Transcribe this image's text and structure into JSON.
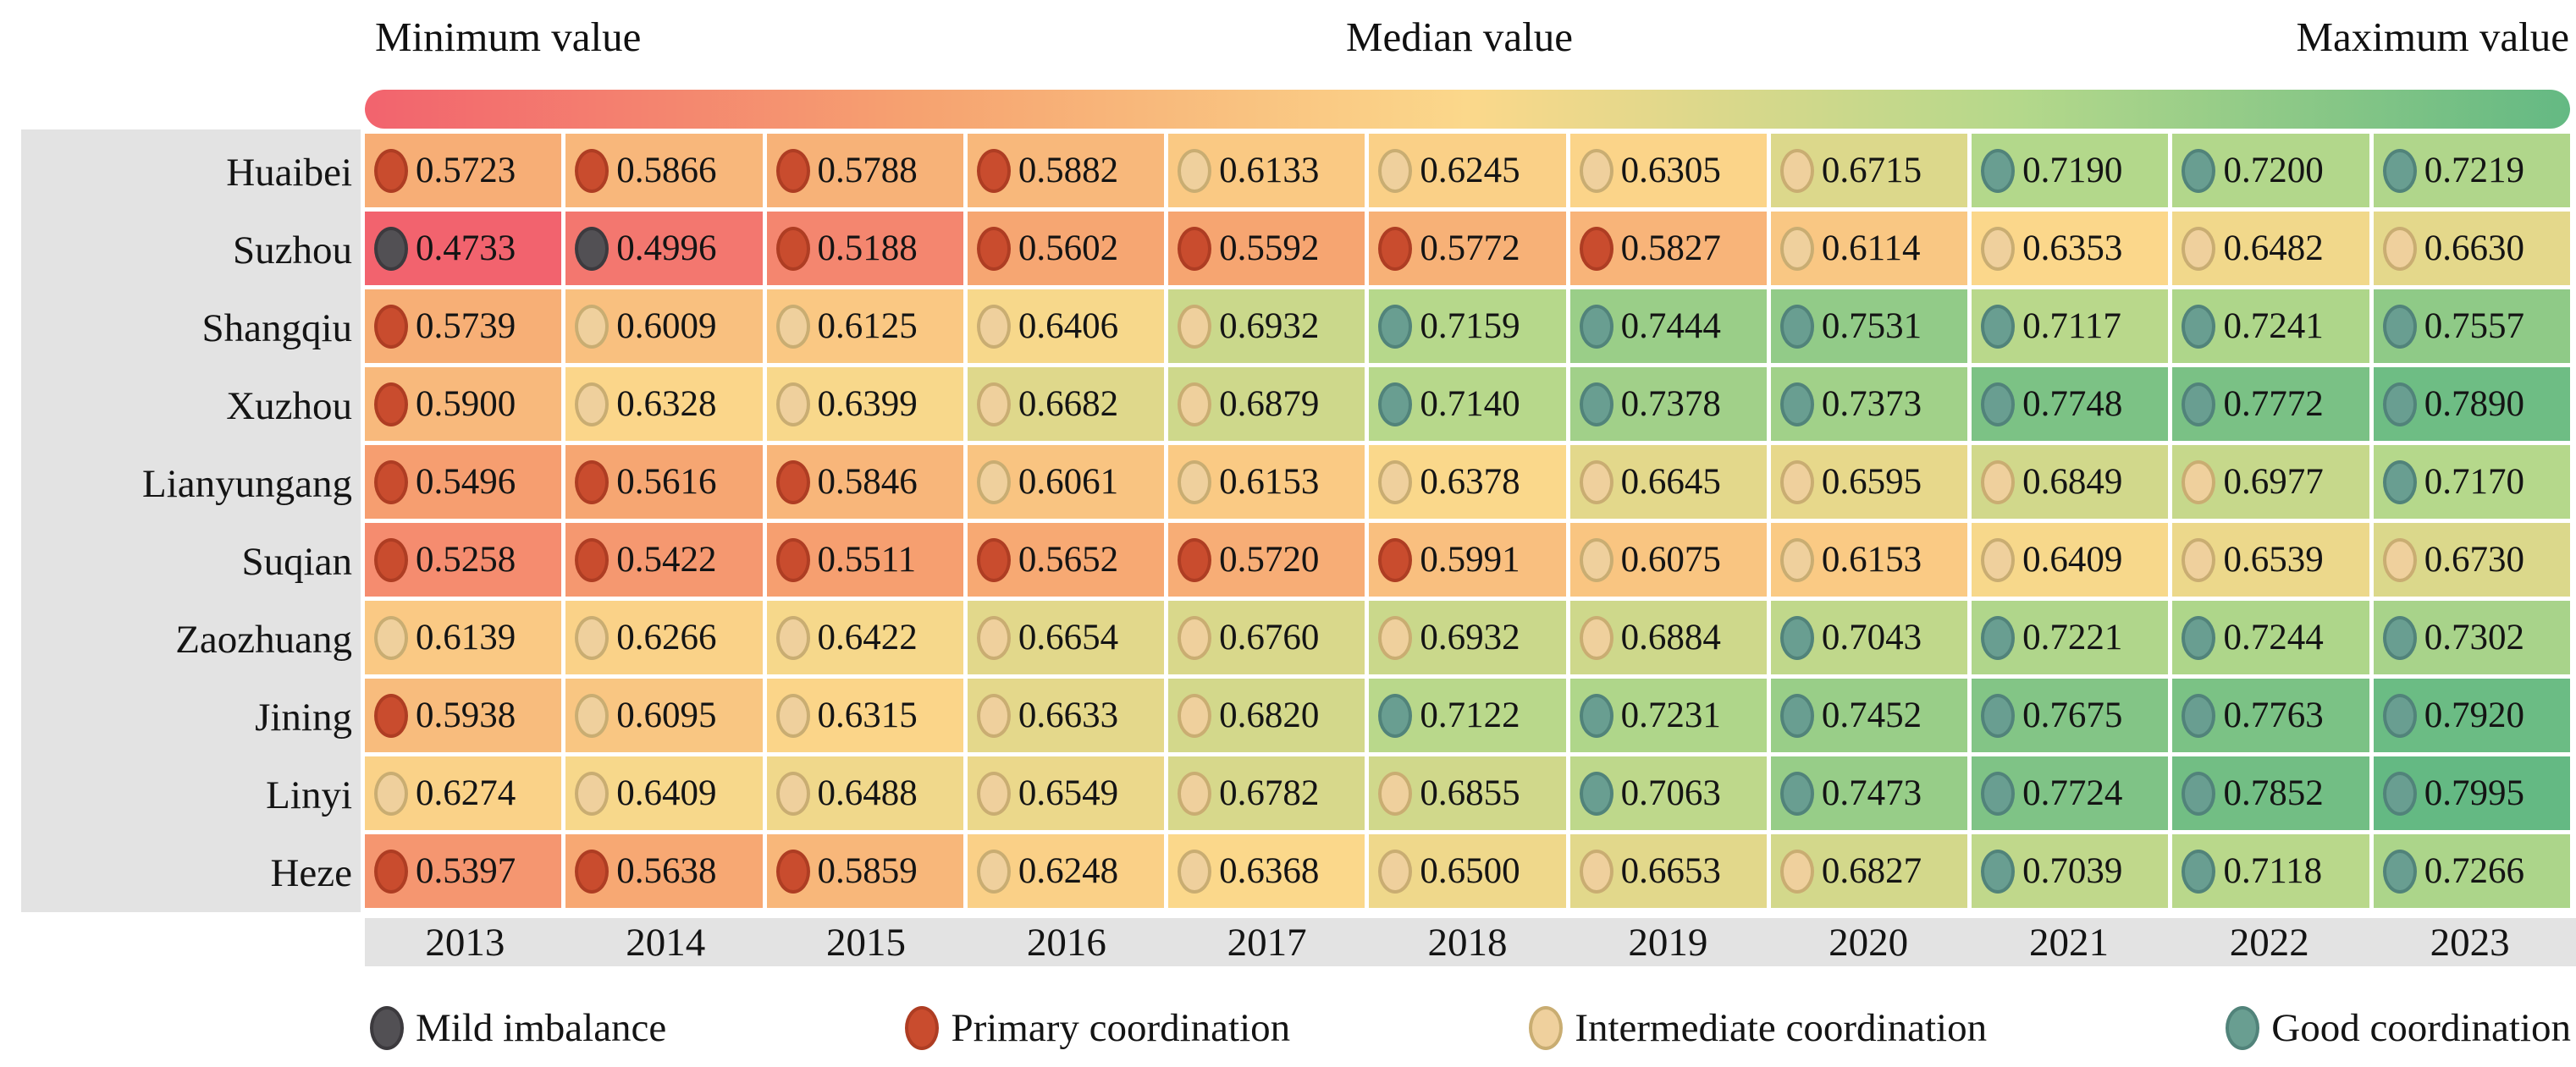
{
  "header": {
    "min_label": "Minimum value",
    "median_label": "Median value",
    "max_label": "Maximum value"
  },
  "chart_data": {
    "type": "heatmap",
    "rows": [
      "Huaibei",
      "Suzhou",
      "Shangqiu",
      "Xuzhou",
      "Lianyungang",
      "Suqian",
      "Zaozhuang",
      "Jining",
      "Linyi",
      "Heze"
    ],
    "columns": [
      "2013",
      "2014",
      "2015",
      "2016",
      "2017",
      "2018",
      "2019",
      "2020",
      "2021",
      "2022",
      "2023"
    ],
    "values": [
      [
        "0.5723",
        "0.5866",
        "0.5788",
        "0.5882",
        "0.6133",
        "0.6245",
        "0.6305",
        "0.6715",
        "0.7190",
        "0.7200",
        "0.7219"
      ],
      [
        "0.4733",
        "0.4996",
        "0.5188",
        "0.5602",
        "0.5592",
        "0.5772",
        "0.5827",
        "0.6114",
        "0.6353",
        "0.6482",
        "0.6630"
      ],
      [
        "0.5739",
        "0.6009",
        "0.6125",
        "0.6406",
        "0.6932",
        "0.7159",
        "0.7444",
        "0.7531",
        "0.7117",
        "0.7241",
        "0.7557"
      ],
      [
        "0.5900",
        "0.6328",
        "0.6399",
        "0.6682",
        "0.6879",
        "0.7140",
        "0.7378",
        "0.7373",
        "0.7748",
        "0.7772",
        "0.7890"
      ],
      [
        "0.5496",
        "0.5616",
        "0.5846",
        "0.6061",
        "0.6153",
        "0.6378",
        "0.6645",
        "0.6595",
        "0.6849",
        "0.6977",
        "0.7170"
      ],
      [
        "0.5258",
        "0.5422",
        "0.5511",
        "0.5652",
        "0.5720",
        "0.5991",
        "0.6075",
        "0.6153",
        "0.6409",
        "0.6539",
        "0.6730"
      ],
      [
        "0.6139",
        "0.6266",
        "0.6422",
        "0.6654",
        "0.6760",
        "0.6932",
        "0.6884",
        "0.7043",
        "0.7221",
        "0.7244",
        "0.7302"
      ],
      [
        "0.5938",
        "0.6095",
        "0.6315",
        "0.6633",
        "0.6820",
        "0.7122",
        "0.7231",
        "0.7452",
        "0.7675",
        "0.7763",
        "0.7920"
      ],
      [
        "0.6274",
        "0.6409",
        "0.6488",
        "0.6549",
        "0.6782",
        "0.6855",
        "0.7063",
        "0.7473",
        "0.7724",
        "0.7852",
        "0.7995"
      ],
      [
        "0.5397",
        "0.5638",
        "0.5859",
        "0.6248",
        "0.6368",
        "0.6500",
        "0.6653",
        "0.6827",
        "0.7039",
        "0.7118",
        "0.7266"
      ]
    ],
    "value_range": {
      "min": 0.4733,
      "max": 0.7995
    },
    "background_color_scale": [
      {
        "t": 0.0,
        "color": "#f2636e"
      },
      {
        "t": 0.25,
        "color": "#f6a270"
      },
      {
        "t": 0.5,
        "color": "#fbd88b"
      },
      {
        "t": 0.75,
        "color": "#b4d88b"
      },
      {
        "t": 1.0,
        "color": "#64b983"
      }
    ],
    "categories": [
      {
        "name": "Mild imbalance",
        "upper": 0.5,
        "dot_fill": "#525054",
        "dot_ring": "#3c3a3e"
      },
      {
        "name": "Primary coordination",
        "upper": 0.6,
        "dot_fill": "#c94c2e",
        "dot_ring": "#ae3d23"
      },
      {
        "name": "Intermediate coordination",
        "upper": 0.7,
        "dot_fill": "#efd09d",
        "dot_ring": "#c9ad72"
      },
      {
        "name": "Good coordination",
        "upper": 1.01,
        "dot_fill": "#699e91",
        "dot_ring": "#51837a"
      }
    ],
    "panel_gray": "#e3e3e3",
    "text_color": "#141414",
    "legend_position": "bottom",
    "grid": "off"
  }
}
